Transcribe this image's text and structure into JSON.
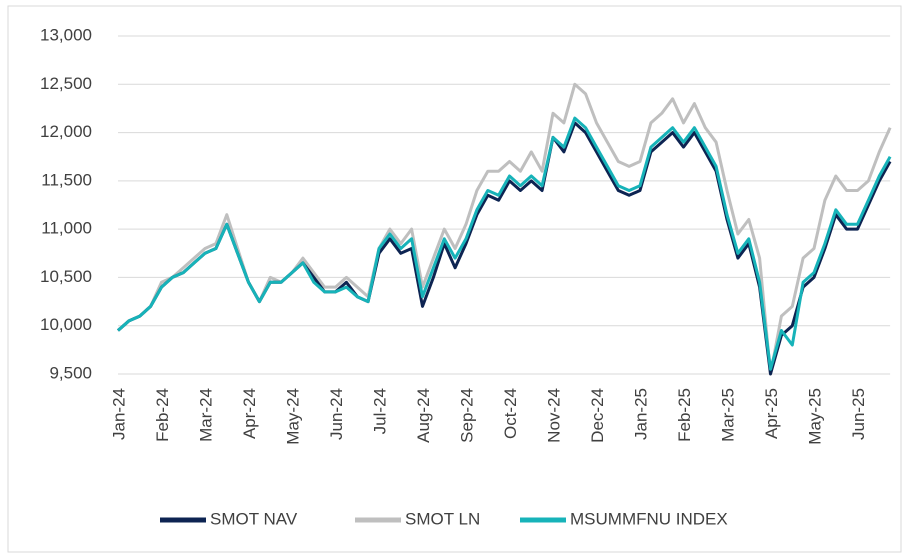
{
  "chart_data": {
    "type": "line",
    "categories": [
      "Jan-24",
      null,
      null,
      null,
      "Feb-24",
      null,
      null,
      null,
      "Mar-24",
      null,
      null,
      null,
      "Apr-24",
      null,
      null,
      null,
      "May-24",
      null,
      null,
      null,
      "Jun-24",
      null,
      null,
      null,
      "Jul-24",
      null,
      null,
      null,
      "Aug-24",
      null,
      null,
      null,
      "Sep-24",
      null,
      null,
      null,
      "Oct-24",
      null,
      null,
      null,
      "Nov-24",
      null,
      null,
      null,
      "Dec-24",
      null,
      null,
      null,
      "Jan-25",
      null,
      null,
      null,
      "Feb-25",
      null,
      null,
      null,
      "Mar-25",
      null,
      null,
      null,
      "Apr-25",
      null,
      null,
      null,
      "May-25",
      null,
      null,
      null,
      "Jun-25",
      null,
      null,
      null
    ],
    "series": [
      {
        "name": "SMOT LN",
        "color": "#bfbfbf",
        "values": [
          9950,
          10050,
          10100,
          10200,
          10450,
          10500,
          10600,
          10700,
          10800,
          10850,
          11150,
          10800,
          10450,
          10250,
          10500,
          10450,
          10550,
          10700,
          10550,
          10400,
          10400,
          10500,
          10400,
          10300,
          10800,
          11000,
          10850,
          11000,
          10400,
          10700,
          11000,
          10800,
          11050,
          11400,
          11600,
          11600,
          11700,
          11600,
          11800,
          11600,
          12200,
          12100,
          12500,
          12400,
          12100,
          11900,
          11700,
          11650,
          11700,
          12100,
          12200,
          12350,
          12100,
          12300,
          12050,
          11900,
          11400,
          10950,
          11100,
          10700,
          9500,
          10100,
          10200,
          10700,
          10800,
          11300,
          11550,
          11400,
          11400,
          11500,
          11800,
          12050
        ]
      },
      {
        "name": "SMOT NAV",
        "color": "#0d2452",
        "values": [
          9950,
          10050,
          10100,
          10200,
          10400,
          10500,
          10550,
          10650,
          10750,
          10800,
          11050,
          10750,
          10450,
          10250,
          10450,
          10450,
          10550,
          10650,
          10500,
          10350,
          10350,
          10450,
          10300,
          10250,
          10750,
          10900,
          10750,
          10800,
          10200,
          10500,
          10850,
          10600,
          10850,
          11150,
          11350,
          11300,
          11500,
          11400,
          11500,
          11400,
          11950,
          11800,
          12100,
          12000,
          11800,
          11600,
          11400,
          11350,
          11400,
          11800,
          11900,
          12000,
          11850,
          12000,
          11800,
          11600,
          11100,
          10700,
          10850,
          10400,
          9500,
          9900,
          10000,
          10400,
          10500,
          10800,
          11150,
          11000,
          11000,
          11250,
          11500,
          11700
        ]
      },
      {
        "name": "MSUMMFNU INDEX",
        "color": "#17b3b9",
        "values": [
          9950,
          10050,
          10100,
          10200,
          10400,
          10500,
          10550,
          10650,
          10750,
          10800,
          11050,
          10750,
          10450,
          10250,
          10450,
          10450,
          10550,
          10650,
          10450,
          10350,
          10350,
          10400,
          10300,
          10250,
          10800,
          10950,
          10800,
          10900,
          10300,
          10600,
          10900,
          10700,
          10900,
          11200,
          11400,
          11350,
          11550,
          11450,
          11550,
          11450,
          11950,
          11850,
          12150,
          12050,
          11850,
          11650,
          11450,
          11400,
          11450,
          11850,
          11950,
          12050,
          11900,
          12050,
          11850,
          11650,
          11150,
          10750,
          10900,
          10450,
          9550,
          9950,
          9800,
          10450,
          10550,
          10850,
          11200,
          11050,
          11050,
          11300,
          11550,
          11750
        ]
      }
    ],
    "ylim": [
      9500,
      13000
    ],
    "yticks": [
      {
        "value": 9500,
        "label": "9,500"
      },
      {
        "value": 10000,
        "label": "10,000"
      },
      {
        "value": 10500,
        "label": "10,500"
      },
      {
        "value": 11000,
        "label": "11,000"
      },
      {
        "value": 11500,
        "label": "11,500"
      },
      {
        "value": 12000,
        "label": "12,000"
      },
      {
        "value": 12500,
        "label": "12,500"
      },
      {
        "value": 13000,
        "label": "13,000"
      }
    ],
    "grid": true,
    "legend": "bottom"
  }
}
